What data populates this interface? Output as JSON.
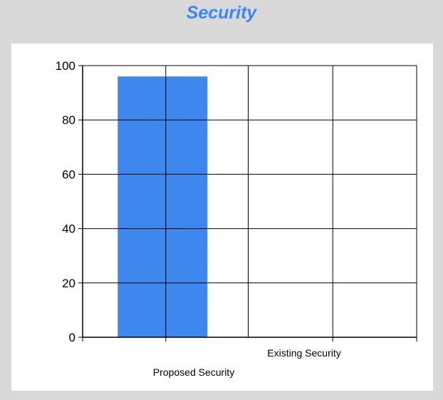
{
  "chart_data": {
    "type": "bar",
    "title": "Security",
    "categories": [
      "Proposed Security",
      "Existing Security"
    ],
    "values": [
      96,
      0
    ],
    "ylim": [
      0,
      100
    ],
    "yticks": [
      0,
      20,
      40,
      60,
      80,
      100
    ],
    "xlabel": "",
    "ylabel": "",
    "grid": true,
    "colors": {
      "bar": "#3d87ef",
      "title": "#3d87ef",
      "background": "#d9d9d9"
    }
  }
}
